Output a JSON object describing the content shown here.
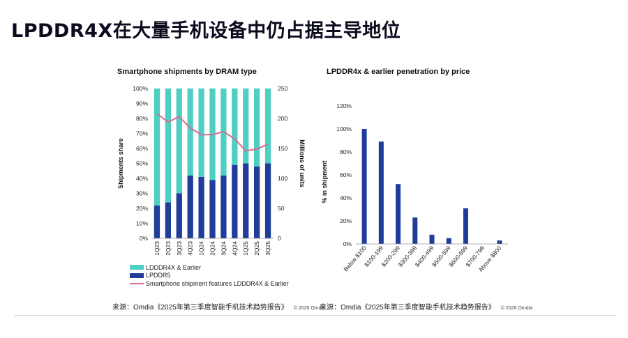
{
  "slide": {
    "title": "LPDDR4X在大量手机设备中仍占据主导地位"
  },
  "colors": {
    "lpddr4x": "#4ecfc2",
    "lpddr5": "#1f3d99",
    "line": "#d96a8e",
    "bar2": "#1f3d99"
  },
  "chart_data": [
    {
      "type": "bar",
      "stacked": true,
      "title": "Smartphone shipments by DRAM type",
      "categories": [
        "1Q23",
        "2Q23",
        "3Q23",
        "4Q23",
        "1Q24",
        "2Q24",
        "3Q24",
        "4Q24",
        "1Q25",
        "2Q25",
        "3Q25"
      ],
      "series": [
        {
          "name": "LPDDR5",
          "values": [
            22,
            24,
            30,
            42,
            41,
            39,
            42,
            49,
            50,
            48,
            50
          ]
        },
        {
          "name": "LDDDR4X & Earlier",
          "values": [
            78,
            76,
            70,
            58,
            59,
            61,
            58,
            51,
            50,
            52,
            50
          ]
        }
      ],
      "line_series": {
        "name": "Smartphone shipment features LDDDR4X & Earlier",
        "values": [
          208,
          194,
          203,
          184,
          173,
          173,
          178,
          166,
          146,
          149,
          157
        ],
        "axis": "right"
      },
      "ylabel": "Shipments share",
      "y2label": "Millions of units",
      "yticks": [
        "0%",
        "10%",
        "20%",
        "30%",
        "40%",
        "50%",
        "60%",
        "70%",
        "80%",
        "90%",
        "100%"
      ],
      "y2ticks": [
        "0",
        "50",
        "100",
        "150",
        "200",
        "250"
      ],
      "ylim": [
        0,
        100
      ],
      "y2lim": [
        0,
        250
      ],
      "legend": "bottom"
    },
    {
      "type": "bar",
      "title": "LPDDR4x & earlier penetration by price",
      "categories": [
        "Below $100",
        "$100-199",
        "$200-299",
        "$300-399",
        "$400-499",
        "$500-599",
        "$600-699",
        "$700-799",
        "Above $800"
      ],
      "values": [
        100,
        89,
        52,
        23,
        8,
        5,
        31,
        0,
        3
      ],
      "ylabel": "% in shipment",
      "yticks": [
        "0%",
        "20%",
        "40%",
        "60%",
        "80%",
        "100%",
        "120%"
      ],
      "ylim": [
        0,
        120
      ]
    }
  ],
  "source": {
    "left": "来源：Omdia《2025年第三季度智能手机技术趋势报告》",
    "right": "来源：Omdia《2025年第三季度智能手机技术趋势报告》",
    "copyright": "© 2026 Omdia"
  }
}
